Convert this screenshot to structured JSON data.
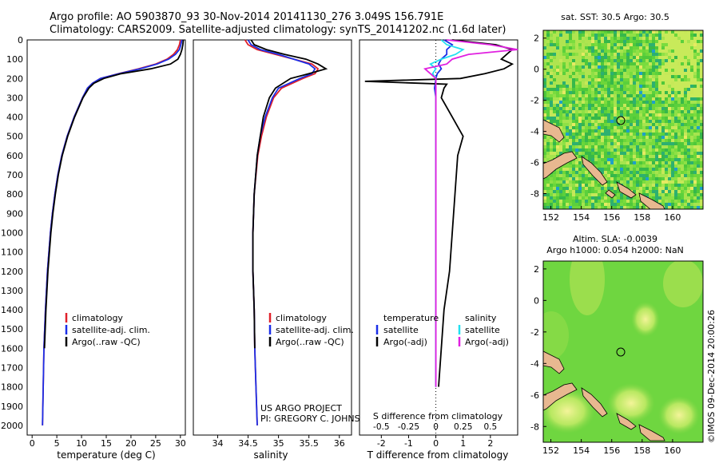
{
  "header": {
    "line1": "Argo profile: AO 5903870_93 30-Nov-2014 20141130_276 3.049S 156.791E",
    "line2": "Climatology: CARS2009. Satellite-adjusted climatology: synTS_20141202.nc (1.6d later)"
  },
  "colors": {
    "climatology": "#e0202a",
    "satellite": "#1a2ee8",
    "argo": "#000000",
    "sal_sat": "#22e0f0",
    "sal_argo": "#e020e0",
    "land": "#e8b890"
  },
  "credits": {
    "project": "US ARGO PROJECT",
    "pi": "PI: GREGORY C. JOHNSON",
    "stamp": "©IMOS 09-Dec-2014 20:00:26"
  },
  "depth_ticks": [
    "0",
    "100",
    "200",
    "300",
    "400",
    "500",
    "600",
    "700",
    "800",
    "900",
    "1000",
    "1100",
    "1200",
    "1300",
    "1400",
    "1500",
    "1600",
    "1700",
    "1800",
    "1900",
    "2000"
  ],
  "chart_data": [
    {
      "id": "temperature",
      "type": "line",
      "xlabel": "temperature (deg C)",
      "ylabel": "depth",
      "xlim": [
        -1,
        31
      ],
      "ylim": [
        2050,
        0
      ],
      "xticks": [
        "0",
        "5",
        "10",
        "15",
        "20",
        "25",
        "30"
      ],
      "legend": [
        "climatology",
        "satellite-adj. clim.",
        "Argo(..raw -QC)"
      ],
      "series": [
        {
          "name": "climatology",
          "depth": [
            0,
            25,
            50,
            75,
            100,
            125,
            150,
            175,
            200,
            225,
            250,
            300,
            400,
            500,
            600,
            700,
            800,
            900,
            1000,
            1200,
            1400,
            1600,
            1800,
            2000
          ],
          "values": [
            30.0,
            29.8,
            29.4,
            28.6,
            27.3,
            25.0,
            21.5,
            17.5,
            13.8,
            12.2,
            11.2,
            10.2,
            8.5,
            7.1,
            6.0,
            5.2,
            4.6,
            4.1,
            3.7,
            3.1,
            2.7,
            2.4,
            2.25,
            2.1
          ]
        },
        {
          "name": "satellite-adj. clim.",
          "depth": [
            0,
            25,
            50,
            75,
            100,
            125,
            150,
            175,
            200,
            225,
            250,
            300,
            400,
            500,
            600,
            700,
            800,
            900,
            1000,
            1200,
            1400,
            1600,
            1800,
            2000
          ],
          "values": [
            30.3,
            30.1,
            29.8,
            29.0,
            27.6,
            25.3,
            21.8,
            17.6,
            13.8,
            12.2,
            11.2,
            10.2,
            8.5,
            7.1,
            6.0,
            5.2,
            4.6,
            4.1,
            3.7,
            3.1,
            2.7,
            2.4,
            2.25,
            2.1
          ]
        },
        {
          "name": "Argo(..raw -QC)",
          "depth": [
            0,
            25,
            50,
            75,
            100,
            125,
            150,
            175,
            200,
            225,
            250,
            300,
            400,
            500,
            600,
            700,
            800,
            900,
            1000,
            1200,
            1400,
            1600
          ],
          "values": [
            30.6,
            30.5,
            30.3,
            30.0,
            29.5,
            28.0,
            24.0,
            18.0,
            14.5,
            12.5,
            11.5,
            10.3,
            8.6,
            7.2,
            6.1,
            5.3,
            4.7,
            4.2,
            3.8,
            3.2,
            2.8,
            2.5
          ]
        }
      ]
    },
    {
      "id": "salinity",
      "type": "line",
      "xlabel": "salinity",
      "ylabel": "depth",
      "xlim": [
        33.6,
        36.2
      ],
      "ylim": [
        2050,
        0
      ],
      "xticks": [
        "34",
        "34.5",
        "35",
        "35.5",
        "36"
      ],
      "legend": [
        "climatology",
        "satellite-adj. clim.",
        "Argo(..raw -QC)"
      ],
      "series": [
        {
          "name": "climatology",
          "depth": [
            0,
            25,
            50,
            75,
            100,
            125,
            150,
            175,
            200,
            250,
            300,
            400,
            500,
            600,
            800,
            1000,
            1200,
            1400,
            1600,
            1800,
            2000
          ],
          "values": [
            34.45,
            34.5,
            34.65,
            34.95,
            35.25,
            35.55,
            35.65,
            35.6,
            35.4,
            35.05,
            34.92,
            34.8,
            34.72,
            34.66,
            34.6,
            34.58,
            34.58,
            34.6,
            34.61,
            34.63,
            34.65
          ]
        },
        {
          "name": "satellite-adj. clim.",
          "depth": [
            0,
            25,
            50,
            75,
            100,
            125,
            150,
            175,
            200,
            250,
            300,
            400,
            500,
            600,
            800,
            1000,
            1200,
            1400,
            1600,
            1800,
            2000
          ],
          "values": [
            34.5,
            34.55,
            34.7,
            35.0,
            35.25,
            35.5,
            35.6,
            35.55,
            35.35,
            35.0,
            34.9,
            34.78,
            34.7,
            34.65,
            34.6,
            34.58,
            34.58,
            34.6,
            34.61,
            34.63,
            34.65
          ]
        },
        {
          "name": "Argo(..raw -QC)",
          "depth": [
            0,
            25,
            50,
            75,
            100,
            125,
            150,
            175,
            200,
            250,
            300,
            400,
            500,
            600,
            800,
            1000,
            1200,
            1400,
            1600
          ],
          "values": [
            34.55,
            34.6,
            34.8,
            35.1,
            35.45,
            35.65,
            35.78,
            35.5,
            35.2,
            34.95,
            34.85,
            34.75,
            34.7,
            34.65,
            34.6,
            34.58,
            34.58,
            34.6,
            34.61
          ]
        }
      ]
    },
    {
      "id": "difference",
      "type": "line",
      "xlabel": "T difference from climatology",
      "xlabel_top": "S difference from climatology",
      "ylim": [
        2050,
        0
      ],
      "t_xlim": [
        -2.8,
        3.0
      ],
      "t_xticks": [
        "-2",
        "-1",
        "0",
        "1",
        "2"
      ],
      "s_xlim": [
        -0.7,
        0.75
      ],
      "s_xticks": [
        "-0.5",
        "-0.25",
        "0",
        "0.25",
        "0.5"
      ],
      "legend_titles": [
        "temperature",
        "salinity"
      ],
      "legend": [
        "satellite",
        "Argo(-adj)",
        "satellite",
        "Argo(-adj)"
      ],
      "series": [
        {
          "name": "temperature satellite",
          "axis": "t",
          "depth": [
            0,
            25,
            50,
            75,
            100,
            125,
            150,
            175,
            200,
            250,
            300,
            500,
            1000,
            1500,
            1800
          ],
          "values": [
            0.3,
            0.6,
            0.4,
            0.4,
            0.2,
            0.1,
            0.2,
            0.05,
            0.0,
            -0.05,
            0.0,
            0.0,
            0.0,
            0.0,
            0.0
          ]
        },
        {
          "name": "temperature Argo(-adj)",
          "axis": "t",
          "depth": [
            0,
            25,
            50,
            75,
            100,
            125,
            150,
            175,
            200,
            215,
            230,
            250,
            300,
            400,
            500,
            600,
            800,
            1000,
            1200,
            1400,
            1800
          ],
          "values": [
            0.6,
            2.2,
            2.8,
            2.6,
            2.4,
            2.8,
            2.5,
            1.8,
            0.9,
            -2.6,
            0.4,
            0.3,
            0.2,
            0.6,
            1.0,
            0.8,
            0.7,
            0.6,
            0.5,
            0.3,
            0.1
          ]
        },
        {
          "name": "salinity satellite",
          "axis": "s",
          "depth": [
            0,
            25,
            50,
            75,
            100,
            125,
            150,
            175,
            200,
            250,
            300,
            500,
            1000,
            1500,
            1800
          ],
          "values": [
            0.05,
            0.1,
            0.25,
            0.18,
            0.05,
            -0.05,
            0.0,
            -0.03,
            0.0,
            0.0,
            0.0,
            0.0,
            0.0,
            0.0,
            0.0
          ]
        },
        {
          "name": "salinity Argo(-adj)",
          "axis": "s",
          "depth": [
            0,
            25,
            50,
            75,
            100,
            125,
            150,
            175,
            200,
            250,
            300,
            500,
            1000,
            1500,
            1800
          ],
          "values": [
            0.1,
            0.5,
            0.75,
            0.3,
            0.15,
            0.1,
            -0.1,
            -0.05,
            0.0,
            0.0,
            0.0,
            0.0,
            0.0,
            0.0,
            0.0
          ]
        }
      ]
    },
    {
      "id": "sst_map",
      "type": "heatmap",
      "title": "sat. SST: 30.5 Argo: 30.5",
      "xticks": [
        "152",
        "154",
        "156",
        "158",
        "160"
      ],
      "yticks": [
        "2",
        "0",
        "-2",
        "-4",
        "-6",
        "-8"
      ],
      "xlim": [
        151.5,
        162
      ],
      "ylim": [
        -9,
        2.5
      ],
      "profile_lon": 156.791,
      "profile_lat": -3.049
    },
    {
      "id": "sla_map",
      "type": "heatmap",
      "title": "Altim. SLA: -0.0039",
      "subtitle": "Argo h1000: 0.054 h2000: NaN",
      "xticks": [
        "152",
        "154",
        "156",
        "158",
        "160"
      ],
      "yticks": [
        "2",
        "0",
        "-2",
        "-4",
        "-6",
        "-8"
      ],
      "xlim": [
        151.5,
        162
      ],
      "ylim": [
        -9,
        2.5
      ],
      "profile_lon": 156.791,
      "profile_lat": -3.049
    }
  ]
}
